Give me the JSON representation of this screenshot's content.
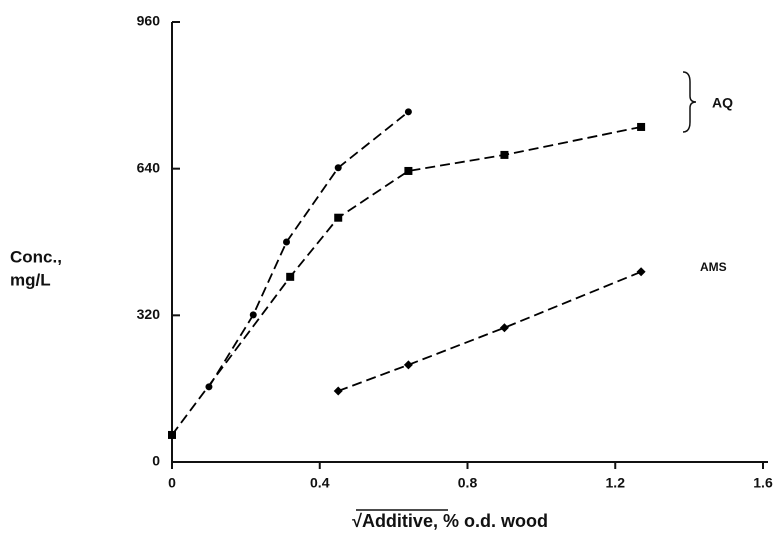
{
  "chart_data": {
    "type": "line",
    "xlabel": "√Additive, % o.d. wood",
    "ylabel": [
      "Conc.,",
      "mg/L"
    ],
    "xlim": [
      0,
      1.6
    ],
    "xticks": [
      0,
      0.4,
      0.8,
      1.2,
      1.6
    ],
    "ylim": [
      0,
      960
    ],
    "yticks": [
      0,
      320,
      640,
      960
    ],
    "series": [
      {
        "color": "#000000",
        "marker": "circle",
        "x": [
          0.1,
          0.22,
          0.31,
          0.45,
          0.64
        ],
        "values": [
          164,
          321,
          480,
          642,
          764
        ]
      },
      {
        "color": "#000000",
        "marker": "square",
        "x": [
          0,
          0.32,
          0.45,
          0.64,
          0.9,
          1.27
        ],
        "values": [
          59,
          404,
          533,
          635,
          670,
          731
        ]
      },
      {
        "color": "#000000",
        "marker": "diamond",
        "x": [
          0.45,
          0.64,
          0.9,
          1.27
        ],
        "values": [
          155,
          212,
          293,
          415
        ]
      }
    ],
    "annotations": [
      "AQ",
      "AMS"
    ]
  }
}
